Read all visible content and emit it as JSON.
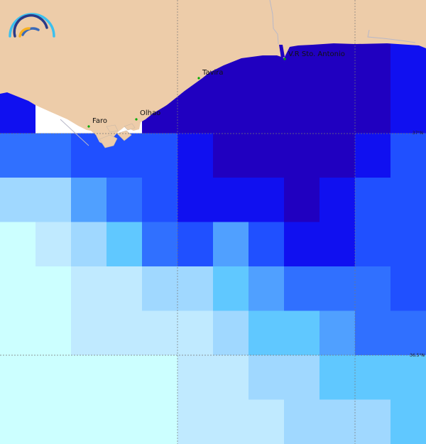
{
  "palette": {
    "A": "#2000c0",
    "B": "#1010f0",
    "C": "#2050ff",
    "D": "#3070ff",
    "E": "#50a0ff",
    "F": "#60c8ff",
    "G": "#a0d8ff",
    "H": "#c0eaff",
    "I": "#ccffff",
    "W": "#ffffff"
  },
  "land_color": "#edcca9",
  "grid": [
    "BWWWAAAAAAAB",
    "BWWWAAAAAAAB",
    "DDCCCBAAAABC",
    "GGEDCBBBABCC",
    "IHGFDCECBBCC",
    "IIHHGGFEDDDC",
    "IIHHHHGFFEDD",
    "IIIIIHHGGFFF",
    "IIIIIHHHGGGF"
  ],
  "places": [
    {
      "name": "Faro",
      "icon": "green-dot"
    },
    {
      "name": "Olhao",
      "icon": "green-dot"
    },
    {
      "name": "Tavira",
      "icon": "green-dot"
    },
    {
      "name": "V.R Sto. Antonio",
      "icon": "green-dot"
    }
  ],
  "latitude_labels": [
    "37°N",
    "36.5°N"
  ],
  "logo": "wave-arcs-logo"
}
